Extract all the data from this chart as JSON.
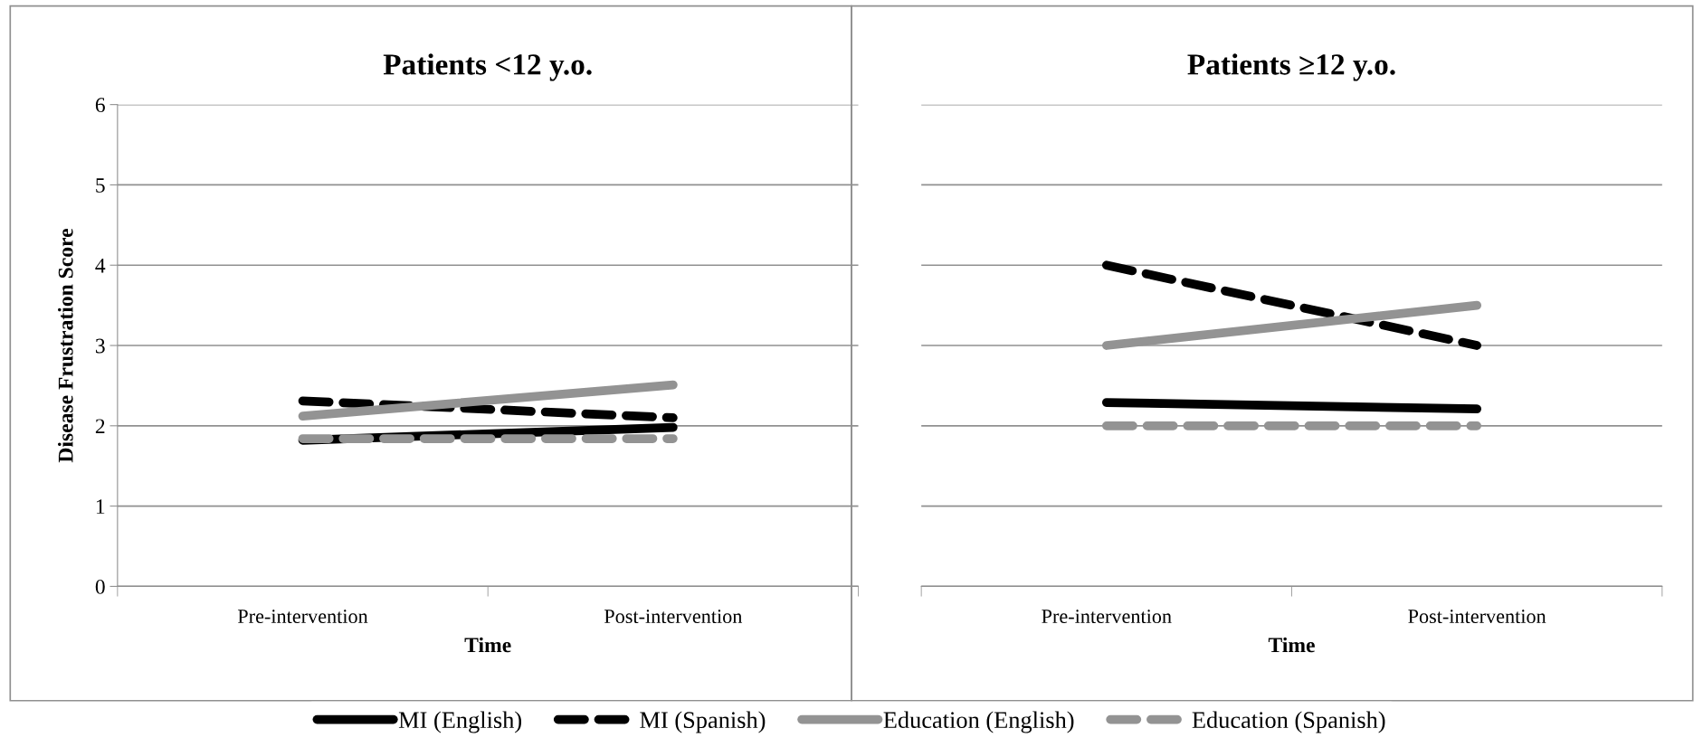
{
  "chart_data": [
    {
      "type": "line",
      "title": "Patients <12 y.o.",
      "xlabel": "Time",
      "ylabel": "Disease Frustration Score",
      "categories": [
        "Pre-intervention",
        "Post-intervention"
      ],
      "ylim": [
        0,
        6
      ],
      "yticks": [
        0,
        1,
        2,
        3,
        4,
        5,
        6
      ],
      "grid": "y",
      "legend": "bottom",
      "marker": "none",
      "series": [
        {
          "name": "MI (English)",
          "color": "#000000",
          "line_style": "solid",
          "values": [
            1.82,
            1.98
          ]
        },
        {
          "name": "MI (Spanish)",
          "color": "#000000",
          "line_style": "dashed",
          "values": [
            2.31,
            2.1
          ]
        },
        {
          "name": "Education (English)",
          "color": "#939393",
          "line_style": "solid",
          "values": [
            2.12,
            2.51
          ]
        },
        {
          "name": "Education (Spanish)",
          "color": "#939393",
          "line_style": "dashed",
          "values": [
            1.84,
            1.84
          ]
        }
      ]
    },
    {
      "type": "line",
      "title": "Patients ≥12 y.o.",
      "xlabel": "Time",
      "categories": [
        "Pre-intervention",
        "Post-intervention"
      ],
      "ylim": [
        0,
        6
      ],
      "yticks": [
        0,
        1,
        2,
        3,
        4,
        5,
        6
      ],
      "grid": "y",
      "tick_labels": "x",
      "marker": "none",
      "series": [
        {
          "color": "#000000",
          "line_style": "solid",
          "values": [
            2.29,
            2.21
          ]
        },
        {
          "color": "#000000",
          "line_style": "dashed",
          "values": [
            4.0,
            3.0
          ]
        },
        {
          "color": "#939393",
          "line_style": "solid",
          "values": [
            3.0,
            3.5
          ]
        },
        {
          "color": "#939393",
          "line_style": "dashed",
          "values": [
            2.0,
            2.0
          ]
        }
      ]
    }
  ]
}
